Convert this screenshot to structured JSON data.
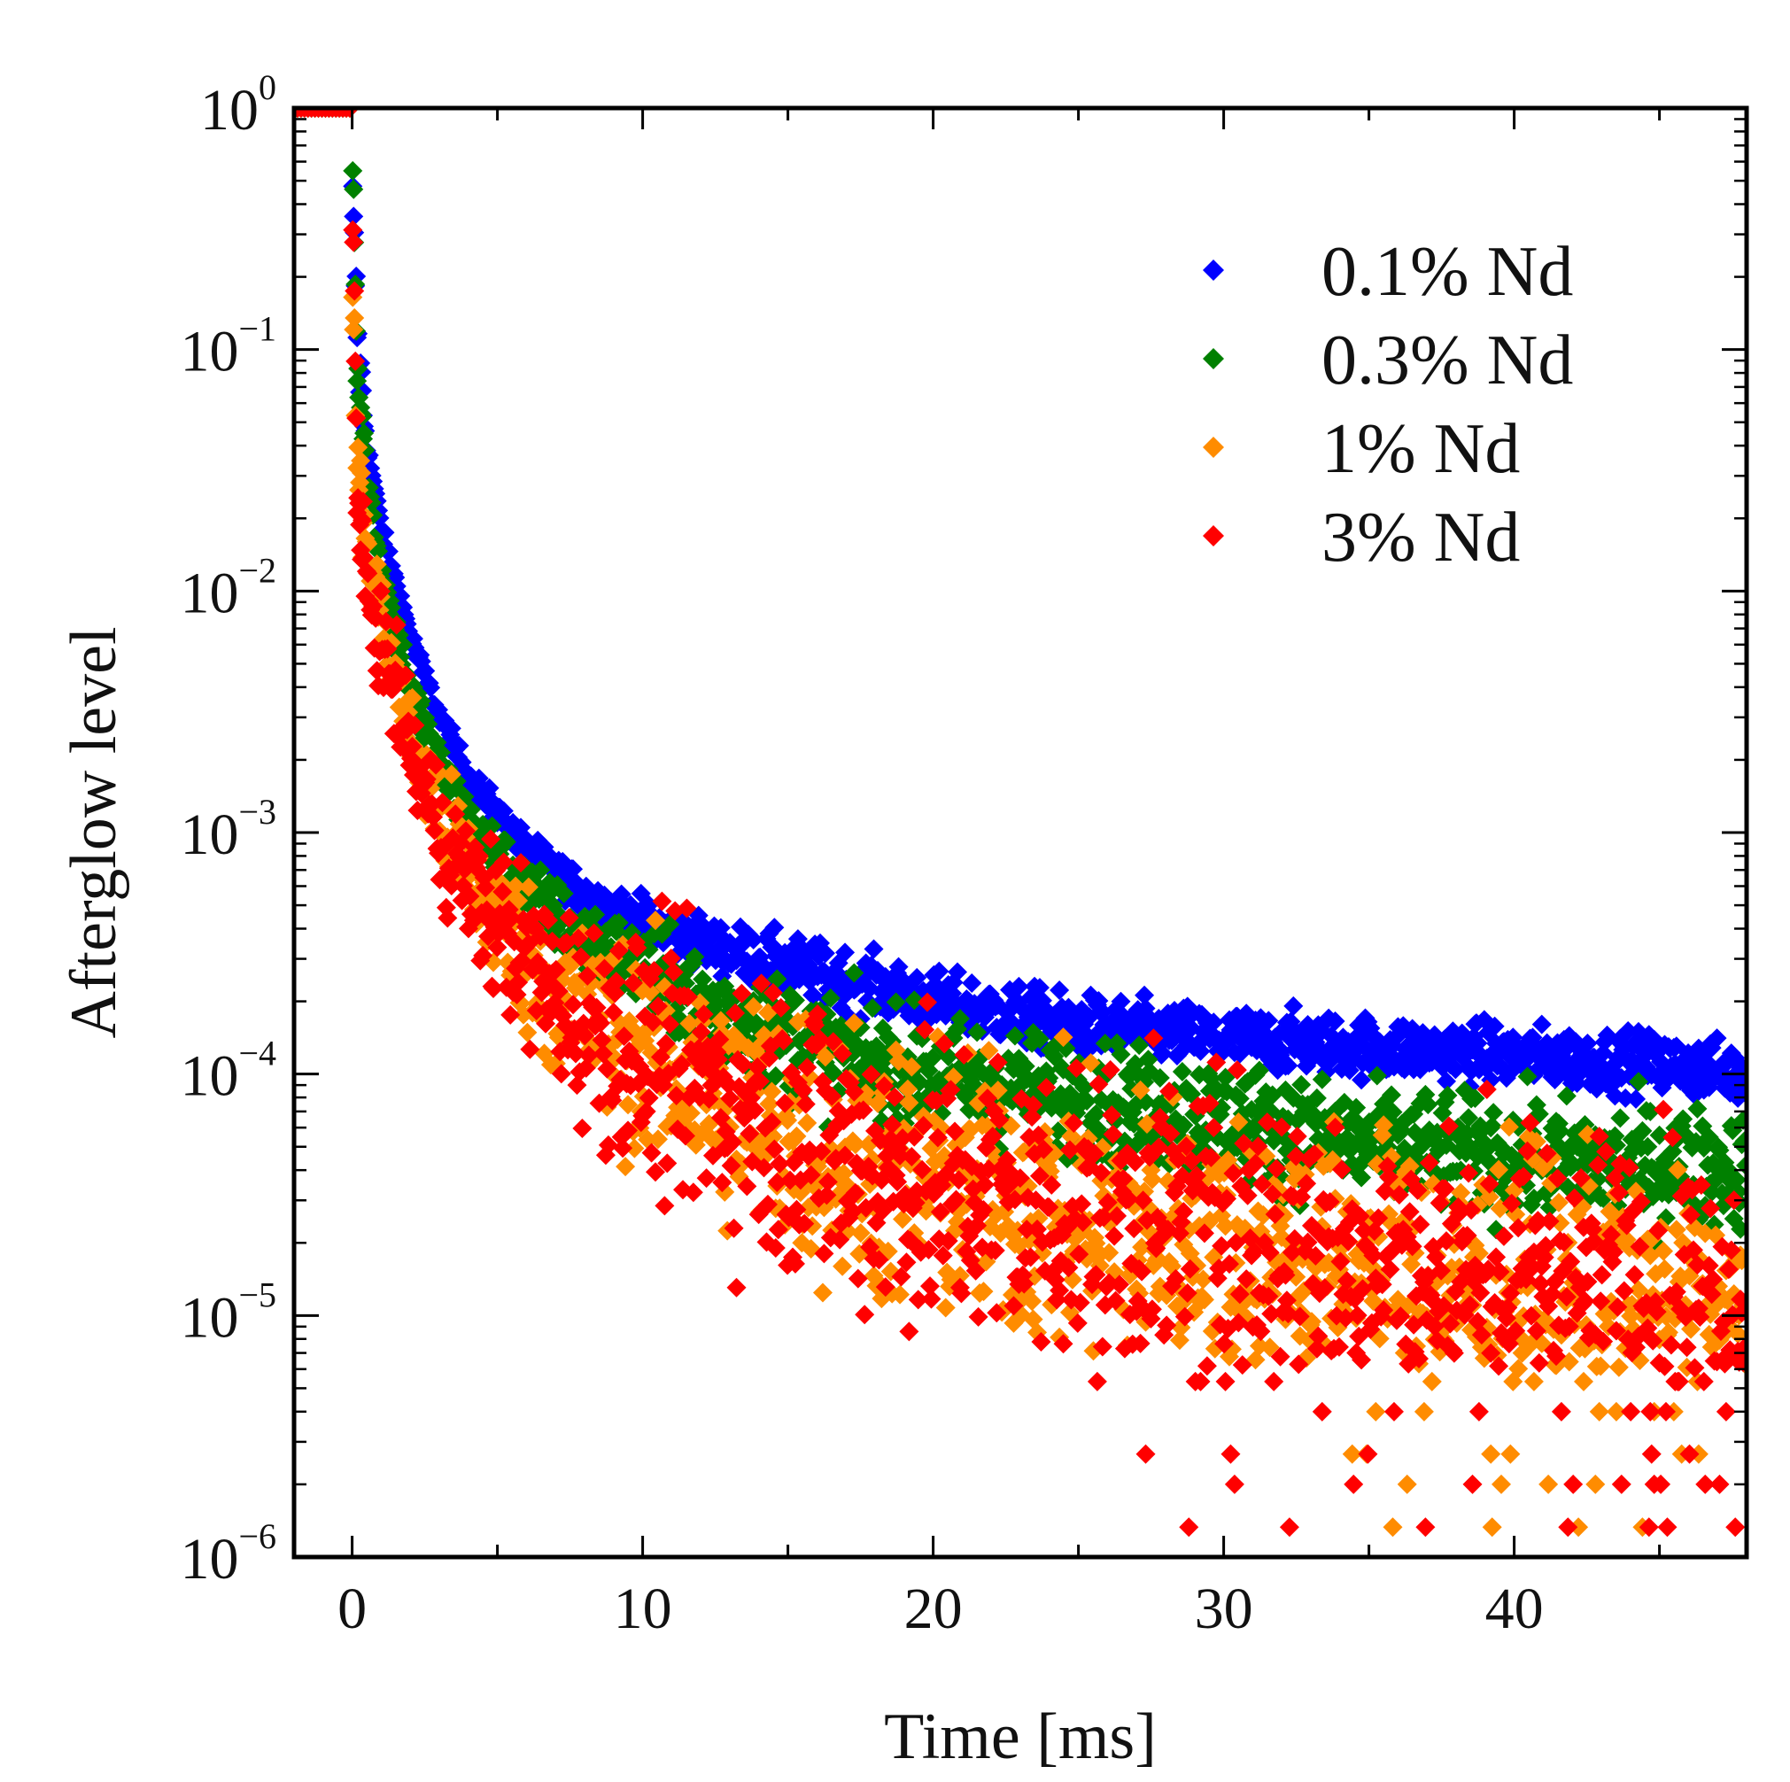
{
  "chart_data": {
    "type": "scatter",
    "title": "",
    "xlabel": "Time [ms]",
    "ylabel": "Afterglow level",
    "xlim": [
      -2,
      48
    ],
    "ylim": [
      1e-06,
      1
    ],
    "yscale": "log",
    "x_ticks": [
      0,
      10,
      20,
      30,
      40
    ],
    "x_tick_labels": [
      "0",
      "10",
      "20",
      "30",
      "40"
    ],
    "y_ticks": [
      1,
      0.1,
      0.01,
      0.001,
      0.0001,
      1e-05,
      1e-06
    ],
    "y_tick_labels": [
      {
        "base": "10",
        "exp": "0"
      },
      {
        "base": "10",
        "exp": "−1"
      },
      {
        "base": "10",
        "exp": "−2"
      },
      {
        "base": "10",
        "exp": "−3"
      },
      {
        "base": "10",
        "exp": "−4"
      },
      {
        "base": "10",
        "exp": "−5"
      },
      {
        "base": "10",
        "exp": "−6"
      }
    ],
    "legend_position": "top-right",
    "marker": "diamond",
    "series": [
      {
        "name": "0.1% Nd",
        "color": "#0000ff",
        "noise": 0.06,
        "x": [
          -2,
          -0.1,
          0,
          0.2,
          0.5,
          1,
          2,
          3,
          4,
          5,
          6,
          7,
          8,
          10,
          12,
          15,
          18,
          20,
          25,
          30,
          35,
          40,
          45,
          48
        ],
        "y": [
          1,
          1,
          0.45,
          0.1,
          0.04,
          0.018,
          0.0065,
          0.003,
          0.0017,
          0.0012,
          0.00085,
          0.0007,
          0.00055,
          0.00043,
          0.00035,
          0.00028,
          0.00023,
          0.0002,
          0.00016,
          0.00014,
          0.00013,
          0.00012,
          0.00011,
          0.0001
        ]
      },
      {
        "name": "0.3% Nd",
        "color": "#008000",
        "noise": 0.12,
        "x": [
          -2,
          -0.1,
          0,
          0.2,
          0.5,
          1,
          2,
          3,
          4,
          5,
          6,
          7,
          8,
          10,
          12,
          15,
          18,
          20,
          25,
          30,
          35,
          40,
          45,
          48
        ],
        "y": [
          1,
          1,
          0.7,
          0.08,
          0.03,
          0.012,
          0.004,
          0.0019,
          0.0011,
          0.0008,
          0.00058,
          0.00045,
          0.00036,
          0.00027,
          0.0002,
          0.00014,
          0.00011,
          0.0001,
          8e-05,
          6.5e-05,
          5e-05,
          4.5e-05,
          4.2e-05,
          4e-05
        ]
      },
      {
        "name": "1% Nd",
        "color": "#ff8c00",
        "noise": 0.28,
        "x": [
          -2,
          -0.1,
          0,
          0.2,
          0.5,
          1,
          2,
          3,
          4,
          5,
          6,
          7,
          8,
          10,
          12,
          15,
          18,
          20,
          25,
          30,
          35,
          40,
          45,
          48
        ],
        "y": [
          1,
          1,
          0.22,
          0.03,
          0.015,
          0.008,
          0.0025,
          0.0012,
          0.0007,
          0.00045,
          0.0003,
          0.00022,
          0.00017,
          0.00012,
          8.5e-05,
          6e-05,
          4e-05,
          3.5e-05,
          2.5e-05,
          2e-05,
          1.5e-05,
          1.2e-05,
          1e-05,
          1e-05
        ]
      },
      {
        "name": "3% Nd",
        "color": "#ff0000",
        "noise": 0.32,
        "x": [
          -2,
          -0.1,
          0,
          0.2,
          0.5,
          1,
          2,
          3,
          4,
          5,
          6,
          7,
          8,
          10,
          12,
          15,
          18,
          20,
          25,
          30,
          35,
          40,
          45,
          48
        ],
        "y": [
          1,
          1,
          0.6,
          0.02,
          0.01,
          0.006,
          0.0022,
          0.001,
          0.0006,
          0.00042,
          0.0003,
          0.00022,
          0.00017,
          0.00012,
          9e-05,
          6.5e-05,
          4e-05,
          3.5e-05,
          2.6e-05,
          2e-05,
          1.6e-05,
          1.4e-05,
          1.2e-05,
          1.1e-05
        ]
      }
    ]
  }
}
